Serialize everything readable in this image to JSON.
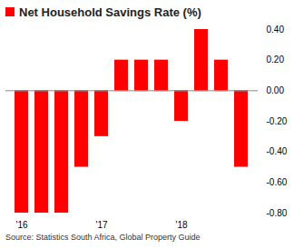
{
  "chart_data": {
    "type": "bar",
    "title": "Net Household Savings Rate (%)",
    "categories": [
      "'16",
      null,
      null,
      null,
      "'17",
      null,
      null,
      null,
      "'18",
      null,
      null,
      null
    ],
    "values": [
      -0.8,
      -0.8,
      -0.8,
      -0.5,
      -0.3,
      0.2,
      0.2,
      0.2,
      -0.2,
      0.4,
      0.2,
      -0.5
    ],
    "color": "#ff0000",
    "ylim": [
      -0.8,
      0.4
    ],
    "yticks": [
      {
        "value": 0.4,
        "label": "0.40"
      },
      {
        "value": 0.2,
        "label": "0.20"
      },
      {
        "value": 0,
        "label": "0.00"
      },
      {
        "value": -0.2,
        "label": "-0.20"
      },
      {
        "value": -0.4,
        "label": "-0.40"
      },
      {
        "value": -0.6,
        "label": "-0.60"
      },
      {
        "value": -0.8,
        "label": "-0.80"
      }
    ],
    "grid": false,
    "caption": "Source: Statistics South Africa, Global Property Guide"
  }
}
